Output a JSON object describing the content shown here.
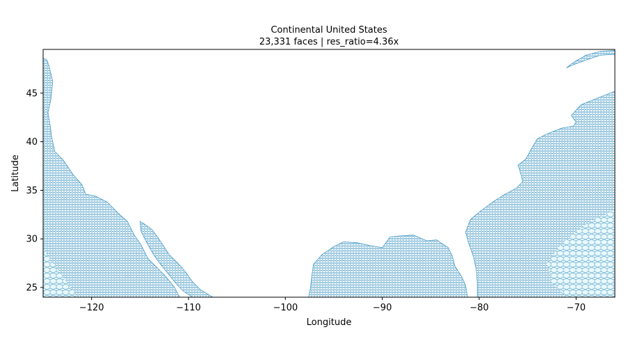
{
  "chart_data": {
    "type": "mesh",
    "title": "Continental United States",
    "subtitle": "23,331 faces  |  res_ratio=4.36x",
    "xlabel": "Longitude",
    "ylabel": "Latitude",
    "xlim": [
      -125,
      -66
    ],
    "ylim": [
      24,
      49.5
    ],
    "xticks": [
      -120,
      -110,
      -100,
      -90,
      -80,
      -70
    ],
    "yticks": [
      25,
      30,
      35,
      40,
      45
    ],
    "xtick_labels": [
      "−120",
      "−110",
      "−100",
      "−90",
      "−80",
      "−70"
    ],
    "ytick_labels": [
      "25",
      "30",
      "35",
      "40",
      "45"
    ],
    "grid": false,
    "colors": {
      "mesh_edge": "#4a9cc7",
      "mesh_face_light": "#e6f7fb",
      "axis": "#000000"
    },
    "regions": [
      {
        "name": "pacific",
        "polygon": [
          [
            -125,
            24
          ],
          [
            -110.9,
            24
          ],
          [
            -111.5,
            25.1
          ],
          [
            -112.4,
            26.2
          ],
          [
            -113.2,
            27.0
          ],
          [
            -114.2,
            28.0
          ],
          [
            -114.9,
            29.4
          ],
          [
            -115.6,
            30.4
          ],
          [
            -116.3,
            31.8
          ],
          [
            -117.2,
            32.6
          ],
          [
            -118.4,
            33.8
          ],
          [
            -119.6,
            34.4
          ],
          [
            -120.6,
            34.6
          ],
          [
            -121.0,
            35.6
          ],
          [
            -121.9,
            36.6
          ],
          [
            -122.5,
            37.5
          ],
          [
            -123.0,
            38.2
          ],
          [
            -123.8,
            39.0
          ],
          [
            -124.1,
            40.4
          ],
          [
            -124.3,
            41.8
          ],
          [
            -124.5,
            43.0
          ],
          [
            -124.2,
            44.3
          ],
          [
            -124.0,
            46.2
          ],
          [
            -124.4,
            47.8
          ],
          [
            -124.6,
            48.4
          ],
          [
            -125,
            48.6
          ]
        ]
      },
      {
        "name": "gulf_of_california",
        "polygon": [
          [
            -115.0,
            31.8
          ],
          [
            -114.5,
            31.5
          ],
          [
            -113.8,
            31.0
          ],
          [
            -113.2,
            30.2
          ],
          [
            -112.6,
            29.3
          ],
          [
            -112.0,
            28.4
          ],
          [
            -111.1,
            27.5
          ],
          [
            -110.3,
            26.6
          ],
          [
            -109.6,
            25.6
          ],
          [
            -108.8,
            24.8
          ],
          [
            -107.5,
            24.0
          ],
          [
            -109.6,
            24.0
          ],
          [
            -110.5,
            24.6
          ],
          [
            -111.2,
            25.3
          ],
          [
            -112.0,
            26.3
          ],
          [
            -112.9,
            27.4
          ],
          [
            -113.6,
            28.4
          ],
          [
            -114.3,
            29.6
          ],
          [
            -114.9,
            30.8
          ]
        ]
      },
      {
        "name": "gulf_and_atlantic",
        "polygon": [
          [
            -97.6,
            24
          ],
          [
            -81.2,
            24
          ],
          [
            -81.4,
            25.2
          ],
          [
            -81.8,
            26.1
          ],
          [
            -82.5,
            27.2
          ],
          [
            -82.8,
            28.3
          ],
          [
            -83.2,
            29.1
          ],
          [
            -84.4,
            29.9
          ],
          [
            -85.4,
            29.8
          ],
          [
            -86.8,
            30.4
          ],
          [
            -88.2,
            30.3
          ],
          [
            -89.2,
            30.2
          ],
          [
            -90.0,
            29.1
          ],
          [
            -91.2,
            29.3
          ],
          [
            -92.6,
            29.6
          ],
          [
            -94.0,
            29.7
          ],
          [
            -95.0,
            29.2
          ],
          [
            -96.2,
            28.4
          ],
          [
            -97.1,
            27.4
          ],
          [
            -97.3,
            26.0
          ],
          [
            -97.4,
            25.0
          ]
        ]
      },
      {
        "name": "atlantic",
        "polygon": [
          [
            -66,
            24
          ],
          [
            -80.2,
            24
          ],
          [
            -80.2,
            25.5
          ],
          [
            -80.3,
            26.8
          ],
          [
            -80.6,
            28.2
          ],
          [
            -81.1,
            29.6
          ],
          [
            -81.4,
            30.7
          ],
          [
            -80.9,
            32.0
          ],
          [
            -79.8,
            32.9
          ],
          [
            -78.6,
            33.8
          ],
          [
            -77.5,
            34.5
          ],
          [
            -76.2,
            35.2
          ],
          [
            -75.5,
            35.9
          ],
          [
            -75.8,
            37.0
          ],
          [
            -76.0,
            37.6
          ],
          [
            -75.2,
            38.2
          ],
          [
            -74.6,
            39.3
          ],
          [
            -74.0,
            40.3
          ],
          [
            -73.0,
            40.8
          ],
          [
            -71.5,
            41.4
          ],
          [
            -70.3,
            41.6
          ],
          [
            -70.0,
            42.0
          ],
          [
            -70.5,
            42.7
          ],
          [
            -69.5,
            43.8
          ],
          [
            -67.5,
            44.6
          ],
          [
            -66,
            45.2
          ]
        ]
      },
      {
        "name": "gulf_of_st_lawrence",
        "polygon": [
          [
            -66,
            49.4
          ],
          [
            -67.5,
            49.3
          ],
          [
            -69.0,
            48.9
          ],
          [
            -70.2,
            48.2
          ],
          [
            -71.0,
            47.6
          ],
          [
            -70.3,
            47.9
          ],
          [
            -69.0,
            48.4
          ],
          [
            -67.5,
            48.9
          ],
          [
            -66,
            49.0
          ]
        ]
      }
    ]
  }
}
